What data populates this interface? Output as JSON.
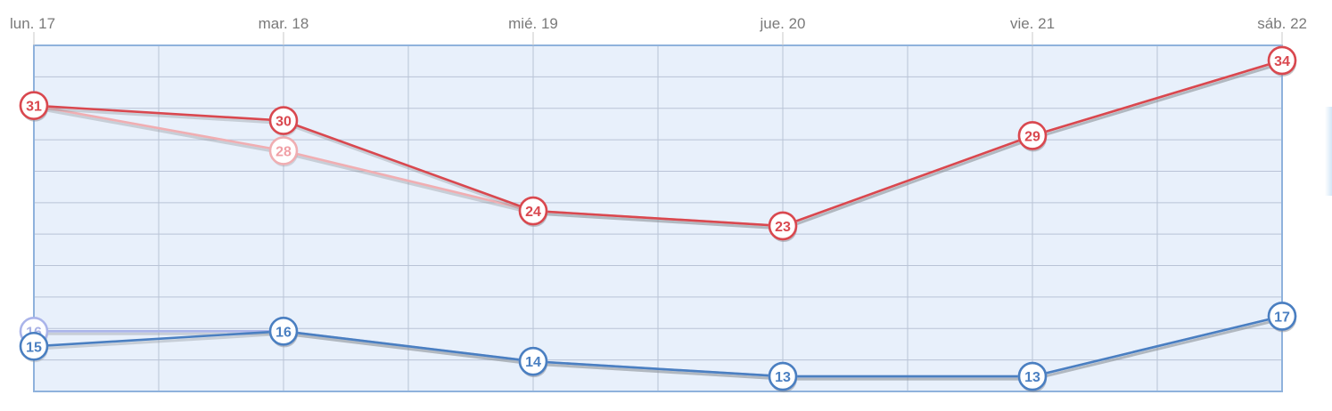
{
  "chart_data": {
    "type": "line",
    "title": "",
    "xlabel": "",
    "ylabel": "",
    "categories": [
      "lun. 17",
      "mar. 18",
      "mié. 19",
      "jue. 20",
      "vie. 21",
      "sáb. 22"
    ],
    "ylim": [
      12,
      35
    ],
    "grid": true,
    "series": [
      {
        "role": "max-previous",
        "values": [
          31,
          28,
          24,
          23,
          29,
          34
        ],
        "color": "#f0aeb2",
        "label_color": "#f0a0a6"
      },
      {
        "role": "max",
        "values": [
          31,
          30,
          24,
          23,
          29,
          34
        ],
        "color": "#d9484f",
        "label_color": "#d9484f"
      },
      {
        "role": "min-previous",
        "values": [
          16,
          16,
          14,
          13,
          13,
          17
        ],
        "color": "#aab4ea",
        "label_color": "#a8b2e6"
      },
      {
        "role": "min",
        "values": [
          15,
          16,
          14,
          13,
          13,
          17
        ],
        "color": "#4a7fc1",
        "label_color": "#4a7fc1"
      }
    ],
    "colors": {
      "plot_background": "#e8f0fb",
      "plot_border": "#8fb2dc",
      "grid": "#b9c3d6",
      "shadow": "#8a8f96"
    }
  }
}
